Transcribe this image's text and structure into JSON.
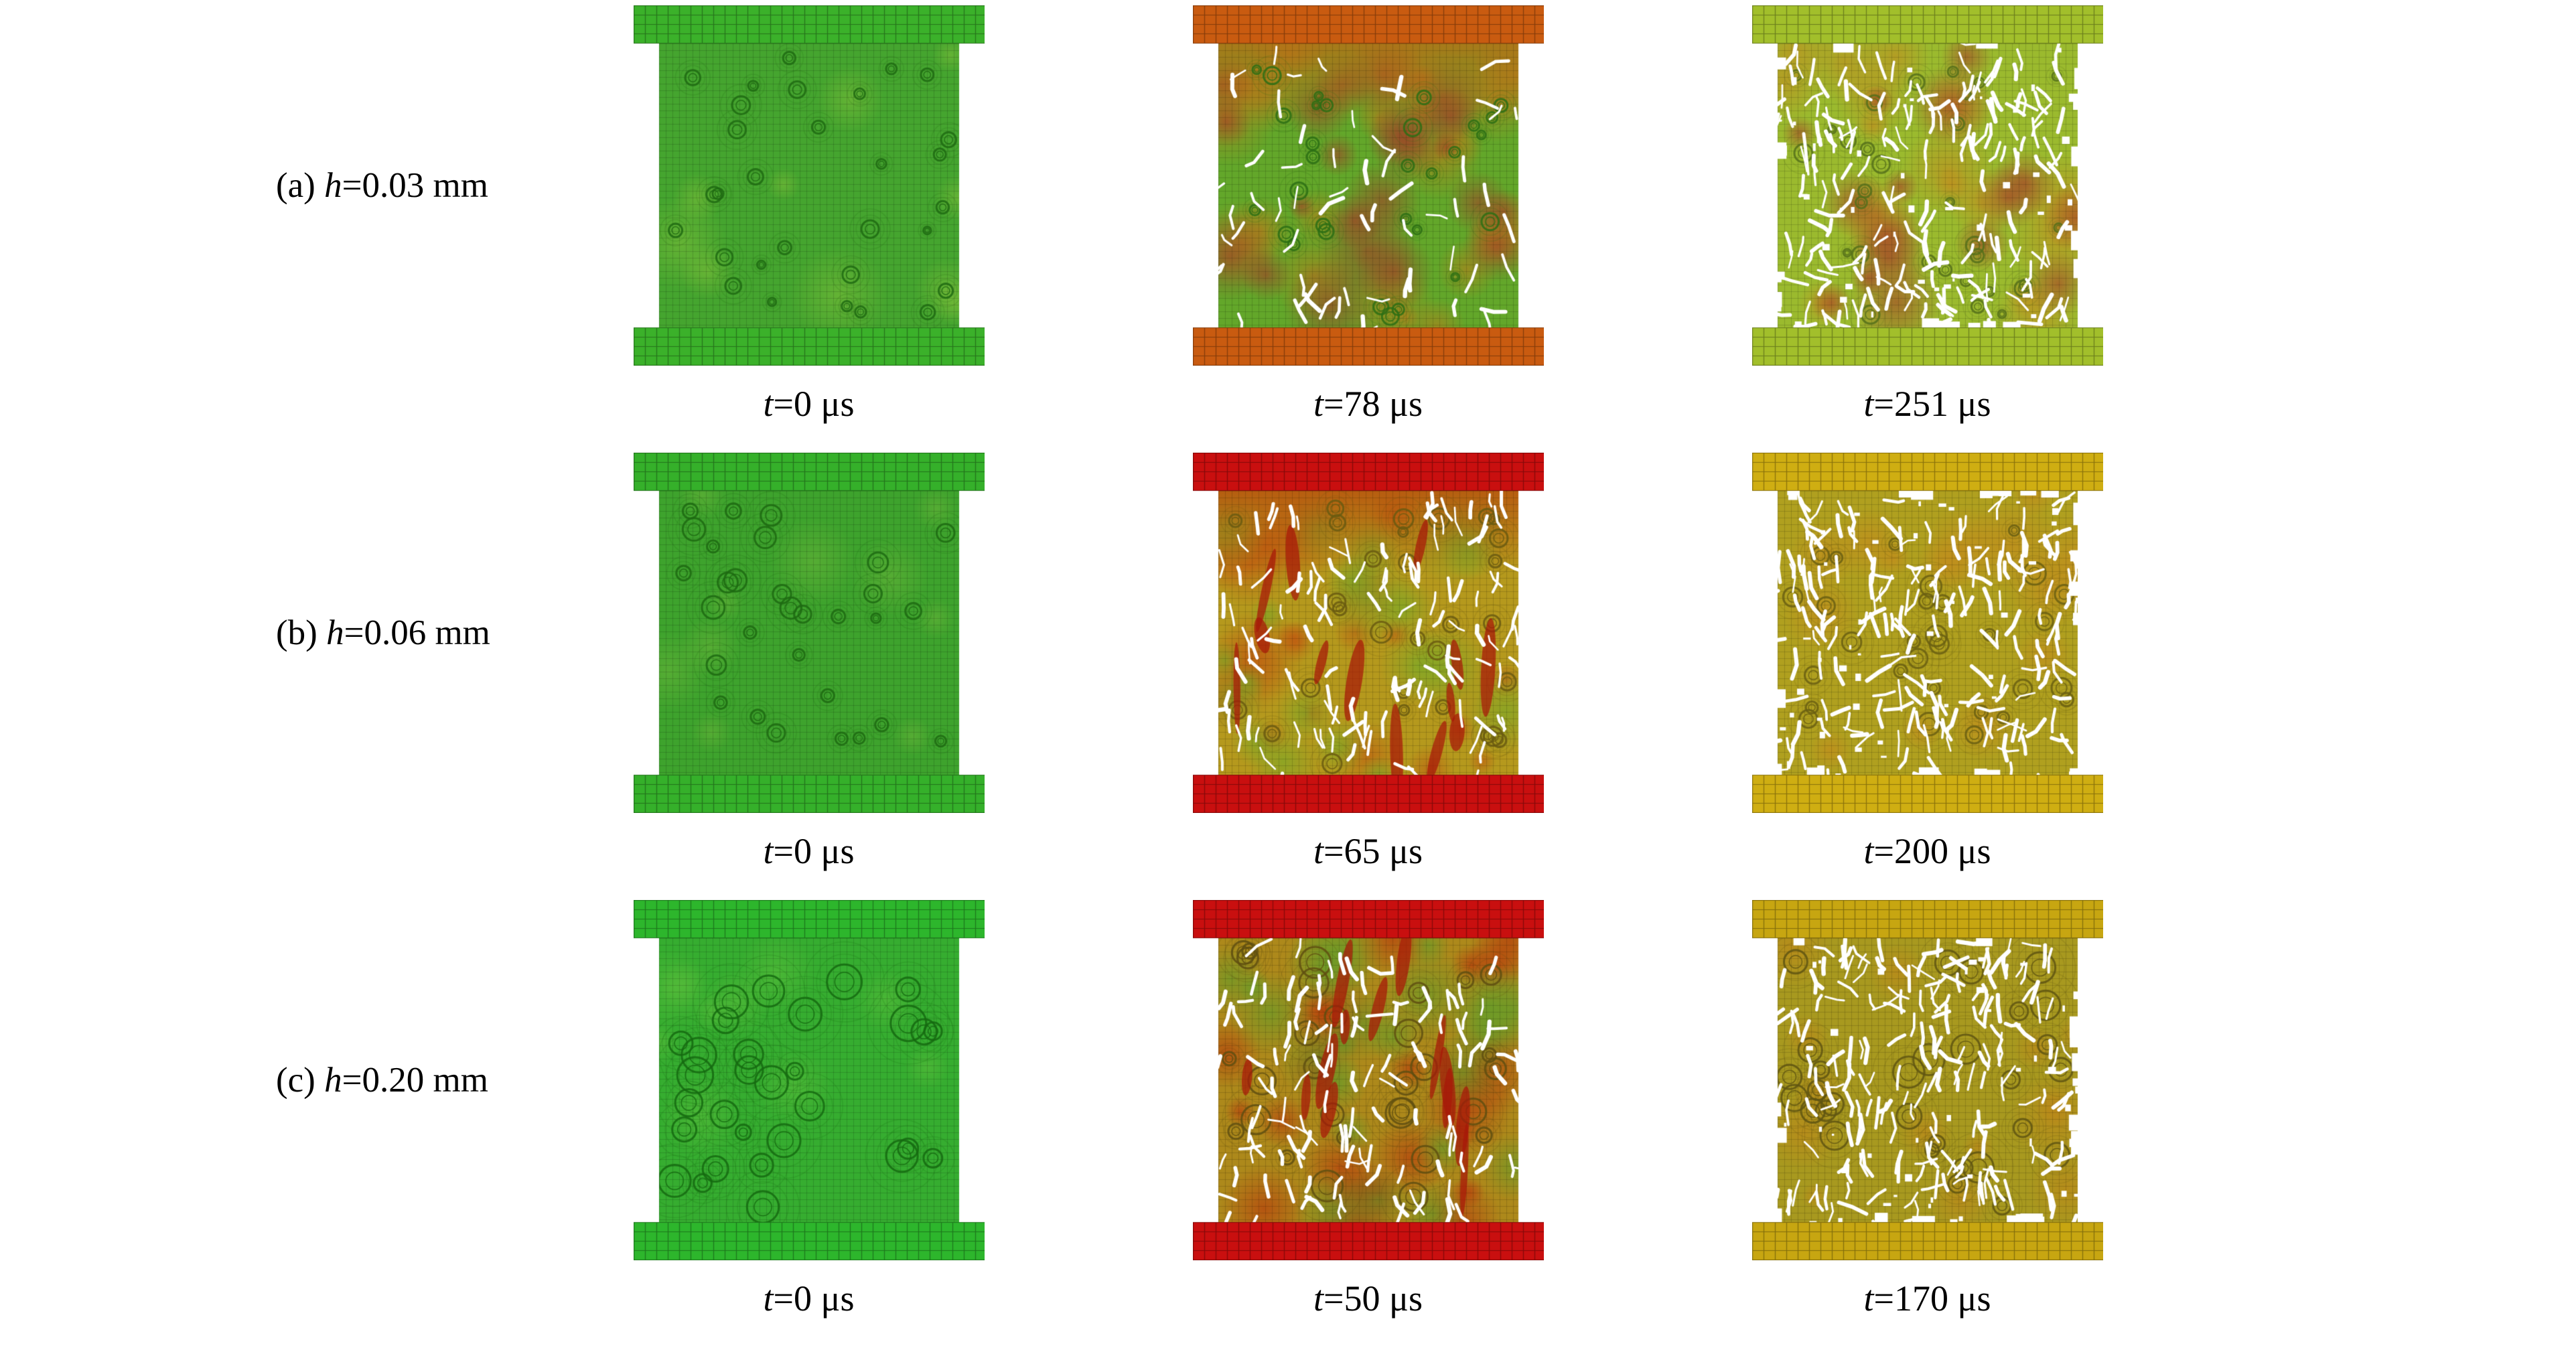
{
  "figure": {
    "background": "#ffffff",
    "rows": [
      {
        "label": {
          "prefix": "(a) ",
          "variable": "h",
          "rest": "=0.03 mm"
        },
        "cells": [
          {
            "caption": {
              "variable": "t",
              "rest": "=0 μs"
            },
            "visual": {
              "plate_color": "#3bb12a",
              "body_color": "#45a52f",
              "inclusion_ring": "#1f6a12",
              "patch_colors": [
                "#7fbf3a"
              ],
              "patch_count": 10,
              "crack_level": "none",
              "inclusion_scale": 0.8
            }
          },
          {
            "caption": {
              "variable": "t",
              "rest": "=78 μs"
            },
            "visual": {
              "plate_color": "#c95b10",
              "body_color": "#63a72a",
              "inclusion_ring": "#2c6e14",
              "patch_colors": [
                "#c07818",
                "#a93226"
              ],
              "patch_count": 22,
              "top_tint": "#c06a14",
              "crack_level": "light",
              "inclusion_scale": 0.8
            }
          },
          {
            "caption": {
              "variable": "t",
              "rest": "=251 μs"
            },
            "visual": {
              "plate_color": "#a2bf2b",
              "body_color": "#9bba2e",
              "inclusion_ring": "#55701a",
              "patch_colors": [
                "#c8861c",
                "#a93226"
              ],
              "patch_count": 16,
              "crack_level": "heavy",
              "inclusion_scale": 0.8
            }
          }
        ]
      },
      {
        "label": {
          "prefix": "(b) ",
          "variable": "h",
          "rest": "=0.06 mm"
        },
        "cells": [
          {
            "caption": {
              "variable": "t",
              "rest": "=0 μs"
            },
            "visual": {
              "plate_color": "#35b02a",
              "body_color": "#3ea32d",
              "inclusion_ring": "#1d6a12",
              "patch_colors": [
                "#6ab53a"
              ],
              "patch_count": 10,
              "crack_level": "none",
              "inclusion_scale": 1.0
            }
          },
          {
            "caption": {
              "variable": "t",
              "rest": "=65 μs"
            },
            "visual": {
              "plate_color": "#c90f0f",
              "body_color": "#b5991d",
              "inclusion_ring": "#6a5a10",
              "patch_colors": [
                "#c2500e",
                "#6fae2a"
              ],
              "patch_count": 20,
              "streak_color": "#a81808",
              "top_tint": "#b84a0c",
              "crack_level": "medium",
              "inclusion_scale": 1.0
            }
          },
          {
            "caption": {
              "variable": "t",
              "rest": "=200 μs"
            },
            "visual": {
              "plate_color": "#cfae12",
              "body_color": "#b0a01f",
              "inclusion_ring": "#6a5f12",
              "patch_colors": [
                "#c8861c"
              ],
              "patch_count": 14,
              "crack_level": "heavy",
              "inclusion_scale": 1.0
            }
          }
        ]
      },
      {
        "label": {
          "prefix": "(c) ",
          "variable": "h",
          "rest": "=0.20 mm"
        },
        "cells": [
          {
            "caption": {
              "variable": "t",
              "rest": "=0 μs"
            },
            "visual": {
              "plate_color": "#2db62c",
              "body_color": "#36ad30",
              "inclusion_ring": "#156a10",
              "patch_colors": [
                "#5cbf3c"
              ],
              "patch_count": 10,
              "crack_level": "none",
              "inclusion_scale": 1.6
            }
          },
          {
            "caption": {
              "variable": "t",
              "rest": "=50 μs"
            },
            "visual": {
              "plate_color": "#c90f0f",
              "body_color": "#ad891b",
              "inclusion_ring": "#5f4f10",
              "patch_colors": [
                "#bb2a08",
                "#56a22c"
              ],
              "patch_count": 22,
              "streak_color": "#a81808",
              "crack_level": "medium",
              "inclusion_scale": 1.4
            }
          },
          {
            "caption": {
              "variable": "t",
              "rest": "=170 μs"
            },
            "visual": {
              "plate_color": "#c7a611",
              "body_color": "#a8991f",
              "inclusion_ring": "#5f5512",
              "patch_colors": [
                "#c28318"
              ],
              "patch_count": 14,
              "crack_level": "heavy",
              "inclusion_scale": 1.4
            }
          }
        ]
      }
    ]
  }
}
